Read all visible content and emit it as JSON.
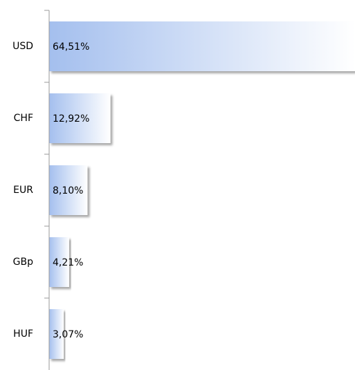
{
  "chart_data": {
    "type": "hbar",
    "categories": [
      "USD",
      "CHF",
      "EUR",
      "GBp",
      "HUF"
    ],
    "values": [
      64.51,
      12.92,
      8.1,
      4.21,
      3.07
    ],
    "value_labels": [
      "64,51%",
      "12,92%",
      "8,10%",
      "4,21%",
      "3,07%"
    ],
    "color": "#a4bfee"
  }
}
